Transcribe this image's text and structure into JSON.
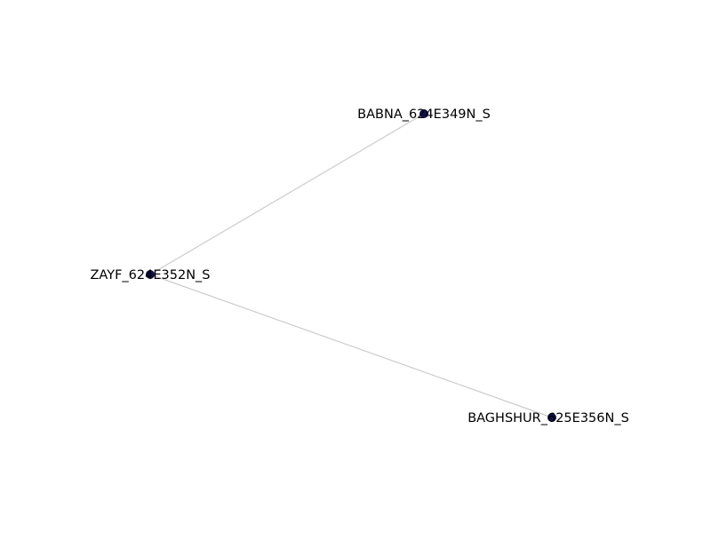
{
  "graph": {
    "node_color": "#0f0f4a",
    "edge_color": "#cccccc",
    "nodes": [
      {
        "id": "zayf",
        "label": "ZAYF_624E352N_S"
      },
      {
        "id": "babna",
        "label": "BABNA_624E349N_S"
      },
      {
        "id": "baghshur",
        "label": "BAGHSHUR_625E356N_S"
      }
    ],
    "edges": [
      {
        "source": "zayf",
        "target": "babna"
      },
      {
        "source": "zayf",
        "target": "baghshur"
      }
    ]
  }
}
